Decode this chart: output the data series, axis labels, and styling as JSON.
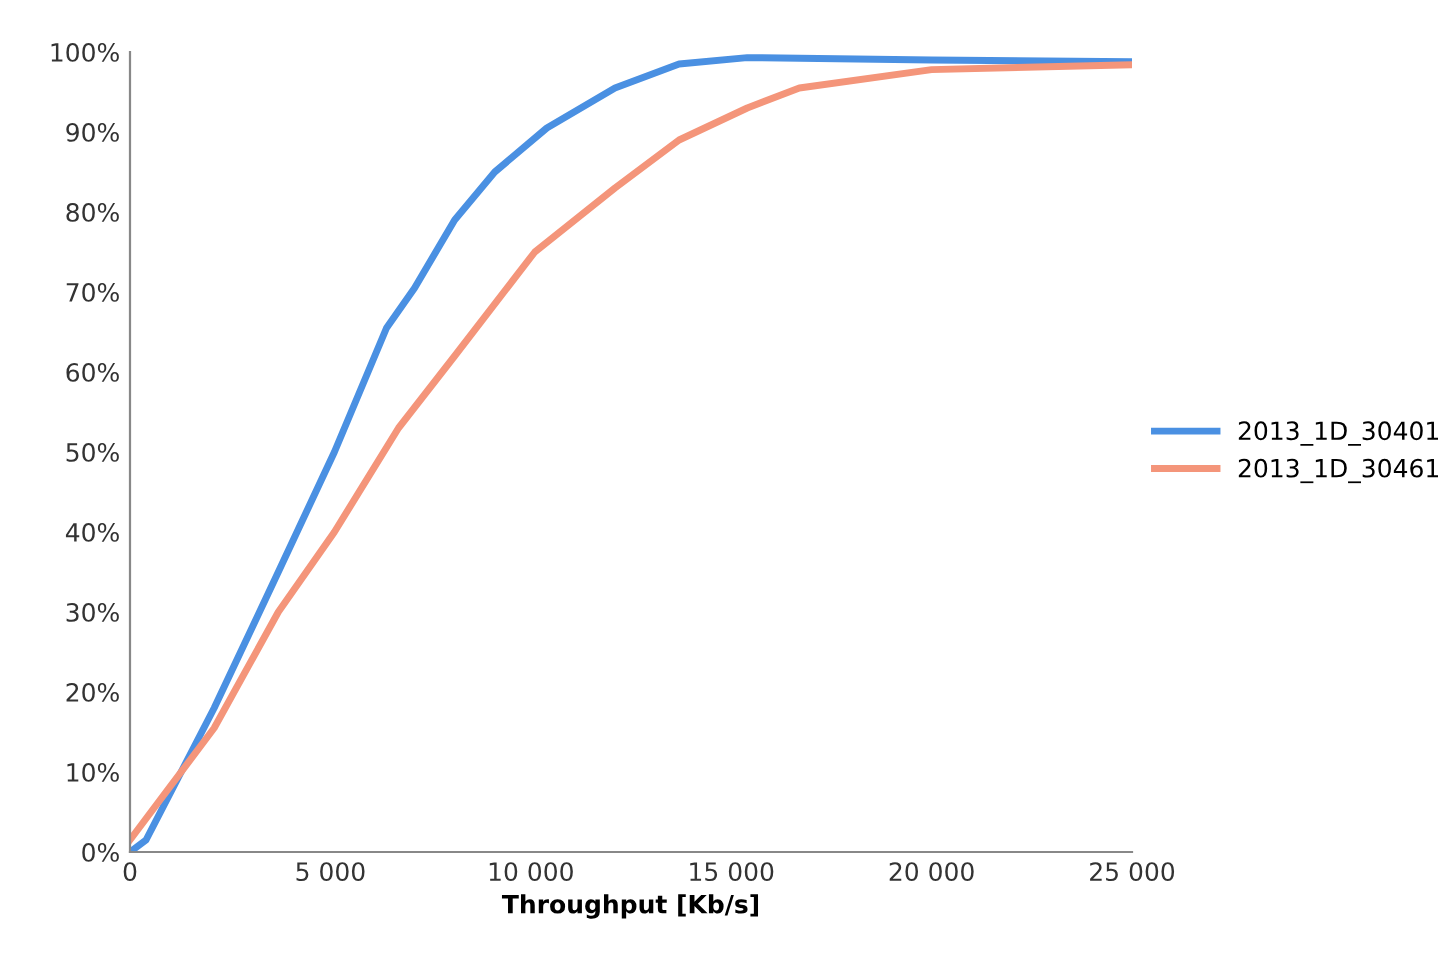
{
  "chart_data": {
    "type": "line",
    "xlabel": "Throughput [Kb/s]",
    "xlim": [
      0,
      25000
    ],
    "xticks": [
      0,
      {
        "value": 5000,
        "label": "5 000"
      },
      {
        "value": 10000,
        "label": "10 000"
      },
      {
        "value": 15000,
        "label": "15 000"
      },
      {
        "value": 20000,
        "label": "20 000"
      },
      {
        "value": 25000,
        "label": "25 000"
      }
    ],
    "ylim": [
      0,
      100
    ],
    "yticks": [
      {
        "value": 0,
        "label": "0%"
      },
      {
        "value": 10,
        "label": "10%"
      },
      {
        "value": 20,
        "label": "20%"
      },
      {
        "value": 30,
        "label": "30%"
      },
      {
        "value": 40,
        "label": "40%"
      },
      {
        "value": 50,
        "label": "50%"
      },
      {
        "value": 60,
        "label": "60%"
      },
      {
        "value": 70,
        "label": "70%"
      },
      {
        "value": 80,
        "label": "80%"
      },
      {
        "value": 90,
        "label": "90%"
      },
      {
        "value": 100,
        "label": "100%"
      }
    ],
    "legend": "right",
    "marker": "none",
    "line_style": "solid",
    "series": [
      {
        "name": "2013_1D_30401",
        "color": "#4a90e2",
        "x": [
          0,
          400,
          2100,
          3700,
          5100,
          6400,
          7100,
          8100,
          9100,
          10400,
          12100,
          13700,
          15400,
          20000,
          25000
        ],
        "values": [
          0,
          1.5,
          18,
          35,
          50,
          65.5,
          70.5,
          79,
          85,
          90.5,
          95.5,
          98.5,
          99.3,
          99,
          98.8
        ]
      },
      {
        "name": "2013_1D_30461",
        "color": "#f4957a",
        "x": [
          0,
          2100,
          3700,
          5100,
          6700,
          8100,
          10100,
          12100,
          13700,
          15400,
          16700,
          20000,
          25000
        ],
        "values": [
          1.5,
          15.5,
          30,
          40,
          53,
          62,
          75,
          83,
          89,
          93,
          95.5,
          97.8,
          98.4
        ]
      }
    ]
  }
}
